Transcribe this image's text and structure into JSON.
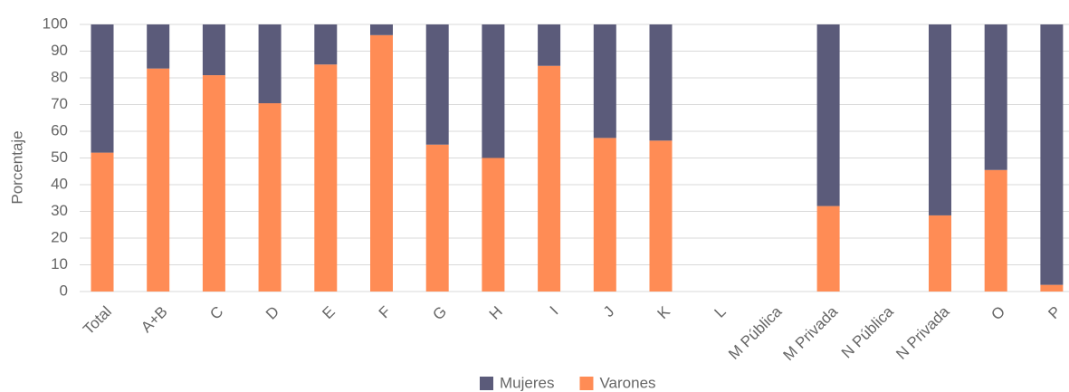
{
  "chart_data": {
    "type": "stacked_bar",
    "categories": [
      "Total",
      "A+B",
      "C",
      "D",
      "E",
      "F",
      "G",
      "H",
      "I",
      "J",
      "K",
      "L",
      "M Pública",
      "M Privada",
      "N Pública",
      "N Privada",
      "O",
      "P"
    ],
    "series": [
      {
        "name": "Varones",
        "color": "#ff8c55",
        "values": [
          52,
          83.5,
          81,
          70.5,
          85,
          96,
          55,
          50,
          84.5,
          57.5,
          56.5,
          null,
          null,
          32,
          null,
          28.5,
          45.5,
          2.5
        ]
      },
      {
        "name": "Mujeres",
        "color": "#5b5b7a",
        "values": [
          48,
          16.5,
          19,
          29.5,
          15,
          4,
          45,
          50,
          15.5,
          42.5,
          43.5,
          null,
          null,
          68,
          null,
          71.5,
          54.5,
          97.5
        ]
      }
    ],
    "y_label": "Porcentaje",
    "ylim": [
      0,
      100
    ],
    "yticks": [
      0,
      10,
      20,
      30,
      40,
      50,
      60,
      70,
      80,
      90,
      100
    ],
    "grid": true
  }
}
